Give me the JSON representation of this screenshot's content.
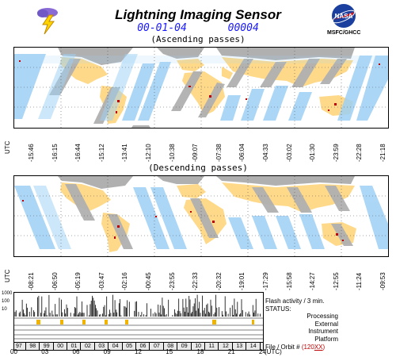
{
  "header": {
    "title": "Lightning Imaging Sensor",
    "date": "00-01-04",
    "orbit": "00004",
    "nasa_caption": "MSFC/GHCC"
  },
  "ascending": {
    "label": "(Ascending passes)",
    "utc_label": "UTC",
    "times": [
      "-15:46",
      "-16:15",
      "-16:44",
      "-15:12",
      "-13:41",
      "-12:10",
      "-10:38",
      "-09:07",
      "-07:38",
      "-06:04",
      "-04:33",
      "-03:02",
      "-01:30",
      "-23:59",
      "-22:28",
      "-21:18"
    ]
  },
  "descending": {
    "label": "(Descending passes)",
    "utc_label": "UTC",
    "times": [
      "-08:21",
      "-06:50",
      "-05:19",
      "-03:47",
      "-02:16",
      "-00:45",
      "-23:55",
      "-22:33",
      "-20:32",
      "-19:01",
      "-17:29",
      "-15:58",
      "-14:27",
      "-12:55",
      "-11:24",
      "-09:53"
    ]
  },
  "activity": {
    "y_ticks": [
      "1000",
      "100",
      "10",
      "1"
    ],
    "flash_label": "Flash activity / 3 min.",
    "status_label": "STATUS:",
    "processing_label": "Processing",
    "external_label": "External",
    "instrument_label": "Instrument",
    "platform_label": "Platform",
    "file_label": "File / Orbit #",
    "file_value": "(120",
    "file_value_red": "XX",
    "file_value_end": ")",
    "file_numbers": [
      "97",
      "98",
      "99",
      "00",
      "01",
      "02",
      "03",
      "04",
      "05",
      "06",
      "07",
      "08",
      "09",
      "10",
      "11",
      "12",
      "13",
      "14"
    ],
    "hours": [
      "00",
      "03",
      "06",
      "09",
      "12",
      "15",
      "18",
      "21",
      "24"
    ],
    "hours_unit": "(UTC)"
  },
  "colors": {
    "ocean": "#ffffff",
    "swath": "#9dd0f5",
    "land": "#ffd98a",
    "land_outside": "#b0b0b0",
    "flash": "#c00000",
    "date_text": "#1a1aff"
  }
}
